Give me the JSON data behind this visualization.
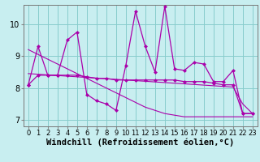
{
  "xlabel": "Windchill (Refroidissement éolien,°C)",
  "bg_color": "#c8eef0",
  "line_color": "#aa00aa",
  "grid_color": "#88cccc",
  "xlim": [
    -0.5,
    23.5
  ],
  "ylim": [
    6.8,
    10.6
  ],
  "x": [
    0,
    1,
    2,
    3,
    4,
    5,
    6,
    7,
    8,
    9,
    10,
    11,
    12,
    13,
    14,
    15,
    16,
    17,
    18,
    19,
    20,
    21,
    22,
    23
  ],
  "series1": [
    8.1,
    9.3,
    8.4,
    8.4,
    9.5,
    9.75,
    7.8,
    7.6,
    7.5,
    7.3,
    8.7,
    10.4,
    9.3,
    8.5,
    10.55,
    8.6,
    8.55,
    8.8,
    8.75,
    8.2,
    8.2,
    8.55,
    7.2,
    7.2
  ],
  "series2": [
    8.1,
    8.4,
    8.4,
    8.4,
    8.4,
    8.4,
    8.35,
    8.3,
    8.3,
    8.25,
    8.25,
    8.25,
    8.25,
    8.25,
    8.25,
    8.25,
    8.2,
    8.2,
    8.2,
    8.15,
    8.1,
    8.1,
    7.2,
    7.2
  ],
  "trend_long": [
    9.2,
    9.05,
    8.9,
    8.75,
    8.6,
    8.45,
    8.3,
    8.15,
    8.0,
    7.85,
    7.7,
    7.55,
    7.4,
    7.3,
    7.2,
    7.15,
    7.1,
    7.1,
    7.1,
    7.1,
    7.1,
    7.1,
    7.1,
    7.1
  ],
  "trend_flat": [
    8.45,
    8.43,
    8.41,
    8.39,
    8.37,
    8.35,
    8.33,
    8.31,
    8.29,
    8.27,
    8.25,
    8.23,
    8.21,
    8.19,
    8.17,
    8.15,
    8.13,
    8.11,
    8.09,
    8.07,
    8.05,
    8.03,
    7.5,
    7.2
  ],
  "yticks": [
    7,
    8,
    9,
    10
  ],
  "tick_fontsize": 6,
  "xlabel_fontsize": 7.5
}
